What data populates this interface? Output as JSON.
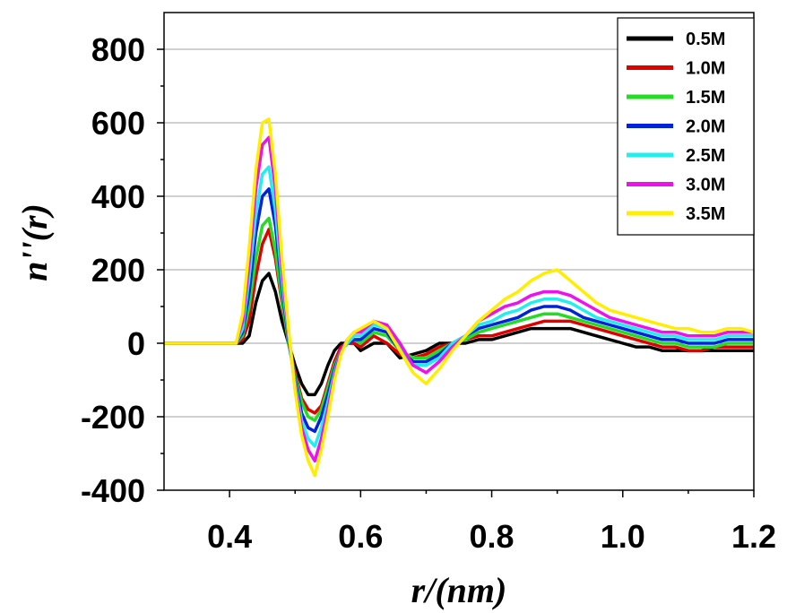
{
  "chart_data": {
    "type": "line",
    "title": "",
    "xlabel": "r/(nm)",
    "ylabel": "n''(r)",
    "xlim": [
      0.3,
      1.2
    ],
    "ylim": [
      -400,
      900
    ],
    "xticks": [
      0.4,
      0.6,
      0.8,
      1.0,
      1.2
    ],
    "xtick_labels": [
      "0.4",
      "0.6",
      "0.8",
      "1.0",
      "1.2"
    ],
    "yticks": [
      -400,
      -200,
      0,
      200,
      400,
      600,
      800
    ],
    "ytick_labels": [
      "-400",
      "-200",
      "0",
      "200",
      "400",
      "600",
      "800"
    ],
    "grid": "horizontal",
    "legend_position": "top-right",
    "x": [
      0.3,
      0.35,
      0.4,
      0.41,
      0.42,
      0.43,
      0.44,
      0.45,
      0.46,
      0.47,
      0.48,
      0.49,
      0.5,
      0.51,
      0.52,
      0.53,
      0.54,
      0.55,
      0.56,
      0.57,
      0.58,
      0.59,
      0.6,
      0.62,
      0.64,
      0.66,
      0.68,
      0.7,
      0.72,
      0.74,
      0.76,
      0.78,
      0.8,
      0.82,
      0.84,
      0.86,
      0.88,
      0.9,
      0.92,
      0.94,
      0.96,
      0.98,
      1.0,
      1.02,
      1.04,
      1.06,
      1.08,
      1.1,
      1.12,
      1.14,
      1.16,
      1.18,
      1.2
    ],
    "series": [
      {
        "name": "0.5M",
        "color": "#000000",
        "values": [
          0,
          0,
          0,
          0,
          0,
          20,
          110,
          170,
          190,
          140,
          60,
          0,
          -60,
          -110,
          -140,
          -140,
          -110,
          -60,
          -20,
          0,
          0,
          0,
          -20,
          0,
          0,
          -40,
          -30,
          -20,
          0,
          0,
          0,
          10,
          10,
          20,
          30,
          40,
          40,
          40,
          40,
          30,
          20,
          10,
          0,
          -10,
          -10,
          -20,
          -20,
          -20,
          -20,
          -20,
          -20,
          -20,
          -20
        ]
      },
      {
        "name": "1.0M",
        "color": "#e00000",
        "values": [
          0,
          0,
          0,
          0,
          10,
          60,
          180,
          270,
          310,
          230,
          110,
          0,
          -80,
          -150,
          -180,
          -190,
          -170,
          -110,
          -50,
          -10,
          0,
          0,
          -10,
          20,
          0,
          -30,
          -40,
          -30,
          -10,
          0,
          10,
          20,
          20,
          30,
          40,
          50,
          60,
          60,
          60,
          50,
          40,
          30,
          20,
          10,
          0,
          -10,
          -10,
          -20,
          -20,
          -10,
          -10,
          -10,
          -10
        ]
      },
      {
        "name": "1.5M",
        "color": "#22dd22",
        "values": [
          0,
          0,
          0,
          0,
          20,
          100,
          230,
          320,
          340,
          250,
          120,
          0,
          -90,
          -160,
          -200,
          -210,
          -180,
          -120,
          -60,
          -20,
          0,
          10,
          0,
          30,
          20,
          -20,
          -40,
          -40,
          -20,
          0,
          10,
          30,
          40,
          50,
          60,
          70,
          80,
          80,
          70,
          60,
          50,
          40,
          30,
          20,
          10,
          0,
          0,
          -10,
          -10,
          -10,
          0,
          0,
          0
        ]
      },
      {
        "name": "2.0M",
        "color": "#0022dd",
        "values": [
          0,
          0,
          0,
          0,
          30,
          140,
          300,
          400,
          420,
          320,
          150,
          10,
          -100,
          -190,
          -230,
          -240,
          -200,
          -140,
          -70,
          -20,
          0,
          10,
          10,
          40,
          30,
          -20,
          -50,
          -50,
          -30,
          0,
          20,
          40,
          50,
          60,
          70,
          90,
          100,
          100,
          90,
          70,
          60,
          50,
          40,
          30,
          20,
          10,
          10,
          0,
          0,
          0,
          10,
          10,
          10
        ]
      },
      {
        "name": "2.5M",
        "color": "#22eeee",
        "values": [
          0,
          0,
          0,
          0,
          40,
          180,
          350,
          460,
          480,
          360,
          170,
          20,
          -110,
          -210,
          -260,
          -280,
          -230,
          -160,
          -80,
          -20,
          0,
          20,
          20,
          50,
          40,
          -10,
          -60,
          -60,
          -40,
          0,
          20,
          50,
          60,
          80,
          90,
          110,
          120,
          120,
          110,
          90,
          70,
          60,
          50,
          40,
          30,
          20,
          20,
          10,
          10,
          10,
          20,
          20,
          20
        ]
      },
      {
        "name": "3.0M",
        "color": "#ee11ee",
        "values": [
          0,
          0,
          0,
          0,
          60,
          220,
          420,
          540,
          560,
          420,
          200,
          30,
          -120,
          -230,
          -290,
          -320,
          -260,
          -180,
          -90,
          -20,
          10,
          30,
          30,
          60,
          50,
          0,
          -60,
          -80,
          -50,
          -10,
          20,
          60,
          80,
          100,
          110,
          130,
          140,
          140,
          130,
          110,
          90,
          70,
          60,
          50,
          40,
          30,
          30,
          20,
          20,
          20,
          30,
          30,
          30
        ]
      },
      {
        "name": "3.5M",
        "color": "#ffee00",
        "values": [
          0,
          0,
          0,
          0,
          80,
          260,
          470,
          600,
          610,
          460,
          230,
          40,
          -130,
          -250,
          -320,
          -360,
          -290,
          -200,
          -100,
          -30,
          10,
          30,
          40,
          60,
          40,
          -20,
          -80,
          -110,
          -70,
          -20,
          20,
          60,
          90,
          120,
          140,
          170,
          190,
          200,
          170,
          140,
          110,
          90,
          80,
          70,
          60,
          50,
          40,
          40,
          30,
          30,
          40,
          40,
          30
        ]
      }
    ]
  }
}
